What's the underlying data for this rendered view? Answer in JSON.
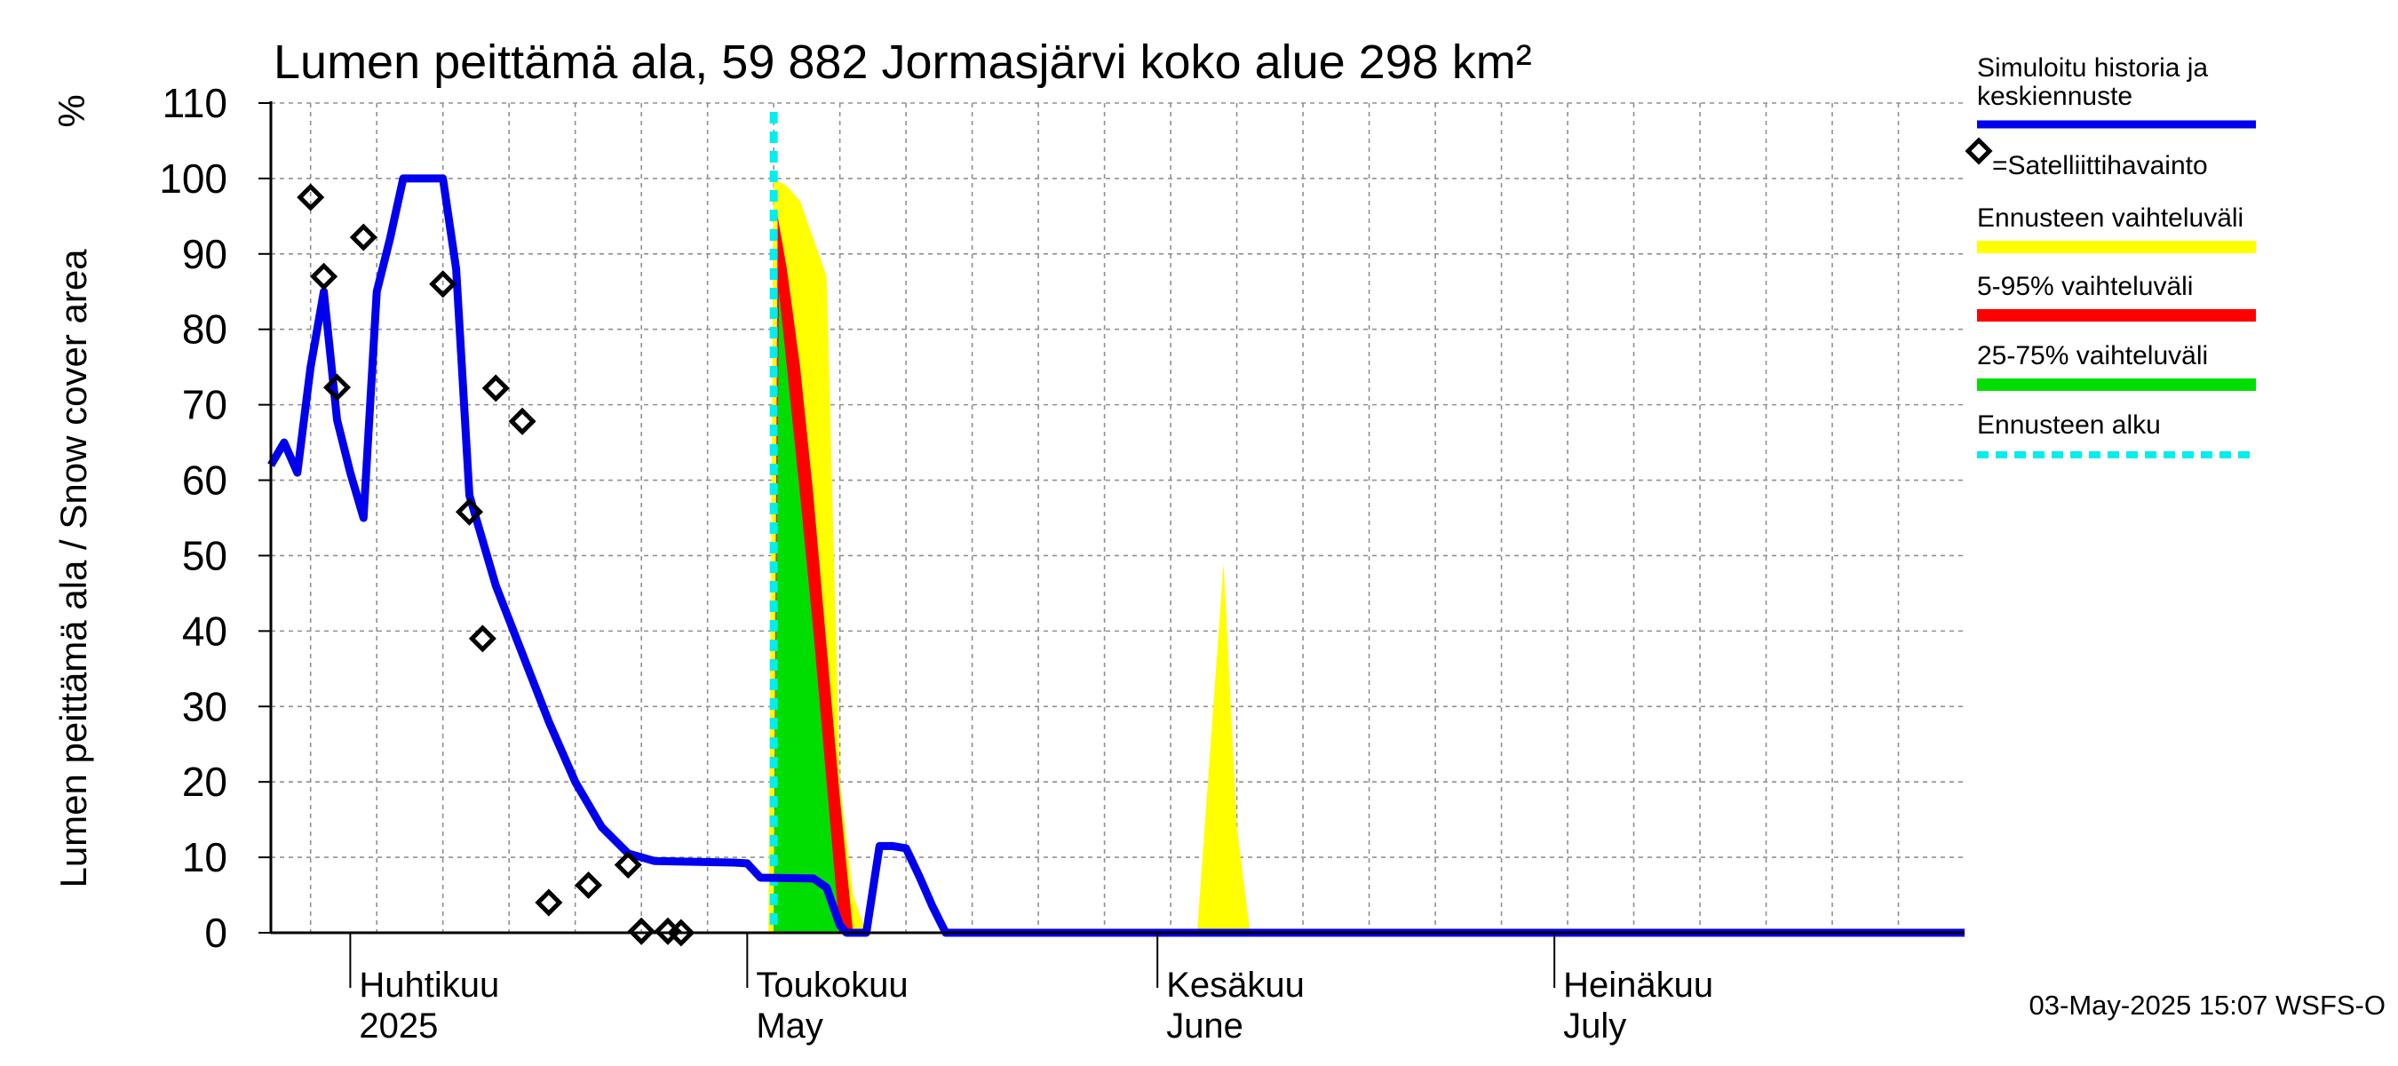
{
  "chart_data": {
    "type": "line",
    "title": "Lumen peittämä ala, 59 882 Jormasjärvi koko alue 298 km²",
    "ylabel": "Lumen peittämä ala / Snow cover area",
    "yunit": "%",
    "ylim": [
      0,
      110
    ],
    "yticks": [
      0,
      10,
      20,
      30,
      40,
      50,
      60,
      70,
      80,
      90,
      100,
      110
    ],
    "xlim": [
      "2025-03-26",
      "2025-08-01"
    ],
    "grid": true,
    "month_labels": [
      {
        "date": "2025-04-01",
        "fi": "Huhtikuu",
        "en": "2025"
      },
      {
        "date": "2025-05-01",
        "fi": "Toukokuu",
        "en": "May"
      },
      {
        "date": "2025-06-01",
        "fi": "Kesäkuu",
        "en": "June"
      },
      {
        "date": "2025-07-01",
        "fi": "Heinäkuu",
        "en": "July"
      }
    ],
    "forecast_start": "2025-05-03",
    "simulated": [
      [
        "2025-03-26",
        62
      ],
      [
        "2025-03-27",
        65
      ],
      [
        "2025-03-28",
        61
      ],
      [
        "2025-03-29",
        75
      ],
      [
        "2025-03-30",
        85
      ],
      [
        "2025-03-31",
        68
      ],
      [
        "2025-04-01",
        61
      ],
      [
        "2025-04-02",
        55
      ],
      [
        "2025-04-03",
        85
      ],
      [
        "2025-04-04",
        92
      ],
      [
        "2025-04-05",
        100
      ],
      [
        "2025-04-06",
        100
      ],
      [
        "2025-04-07",
        100
      ],
      [
        "2025-04-08",
        100
      ],
      [
        "2025-04-09",
        88
      ],
      [
        "2025-04-10",
        58
      ],
      [
        "2025-04-12",
        46
      ],
      [
        "2025-04-14",
        37
      ],
      [
        "2025-04-16",
        28
      ],
      [
        "2025-04-18",
        20
      ],
      [
        "2025-04-20",
        14
      ],
      [
        "2025-04-22",
        10.5
      ],
      [
        "2025-04-24",
        9.5
      ],
      [
        "2025-04-30",
        9.3
      ],
      [
        "2025-05-01",
        9.2
      ],
      [
        "2025-05-02",
        7.3
      ],
      [
        "2025-05-06",
        7.2
      ],
      [
        "2025-05-07",
        6
      ],
      [
        "2025-05-08",
        1
      ],
      [
        "2025-05-08.5",
        0
      ],
      [
        "2025-05-10",
        0
      ],
      [
        "2025-05-11",
        11.5
      ],
      [
        "2025-05-12",
        11.5
      ],
      [
        "2025-05-13",
        11.2
      ],
      [
        "2025-05-14",
        7.5
      ],
      [
        "2025-05-15",
        3.5
      ],
      [
        "2025-05-16",
        0
      ],
      [
        "2025-08-01",
        0
      ]
    ],
    "satellite": [
      [
        "2025-03-29",
        97.5
      ],
      [
        "2025-03-30",
        87
      ],
      [
        "2025-03-31",
        72.3
      ],
      [
        "2025-04-02",
        92.2
      ],
      [
        "2025-04-08",
        86
      ],
      [
        "2025-04-10",
        55.8
      ],
      [
        "2025-04-11",
        39
      ],
      [
        "2025-04-12",
        72.2
      ],
      [
        "2025-04-14",
        67.8
      ],
      [
        "2025-04-16",
        4
      ],
      [
        "2025-04-19",
        6.3
      ],
      [
        "2025-04-22",
        9
      ],
      [
        "2025-04-23",
        0.2
      ],
      [
        "2025-04-25",
        0.2
      ],
      [
        "2025-04-26",
        0
      ]
    ],
    "band_yellow": [
      [
        "2025-05-02.6",
        0
      ],
      [
        "2025-05-03",
        100
      ],
      [
        "2025-05-04",
        99
      ],
      [
        "2025-05-05",
        97
      ],
      [
        "2025-05-06",
        92
      ],
      [
        "2025-05-07",
        87
      ],
      [
        "2025-05-08",
        20
      ],
      [
        "2025-05-09",
        5
      ],
      [
        "2025-05-10",
        0
      ],
      [
        "2025-06-04",
        0
      ],
      [
        "2025-06-06",
        49
      ],
      [
        "2025-06-07",
        14
      ],
      [
        "2025-06-08",
        0
      ]
    ],
    "band_red": [
      [
        "2025-05-03",
        0
      ],
      [
        "2025-05-03.3",
        95
      ],
      [
        "2025-05-04",
        88
      ],
      [
        "2025-05-05",
        75
      ],
      [
        "2025-05-06",
        58
      ],
      [
        "2025-05-07",
        38
      ],
      [
        "2025-05-08",
        18
      ],
      [
        "2025-05-09",
        0
      ]
    ],
    "band_green": [
      [
        "2025-05-03",
        0
      ],
      [
        "2025-05-03.4",
        85
      ],
      [
        "2025-05-04",
        75
      ],
      [
        "2025-05-05",
        58
      ],
      [
        "2025-05-06",
        40
      ],
      [
        "2025-05-07",
        20
      ],
      [
        "2025-05-08",
        0
      ]
    ],
    "legend": [
      {
        "label": "Simuloitu historia ja",
        "label2": "keskiennuste",
        "color": "#0000ee",
        "style": "line"
      },
      {
        "label": "=Satelliittihavainto",
        "color": "#000000",
        "style": "diamond"
      },
      {
        "label": "Ennusteen vaihteluväli",
        "color": "#ffff00",
        "style": "band"
      },
      {
        "label": "5-95% vaihteluväli",
        "color": "#ff0000",
        "style": "band"
      },
      {
        "label": "25-75% vaihteluväli",
        "color": "#00dd00",
        "style": "band"
      },
      {
        "label": "Ennusteen alku",
        "color": "#00eeee",
        "style": "dashed"
      }
    ],
    "footer": "03-May-2025 15:07 WSFS-O"
  }
}
